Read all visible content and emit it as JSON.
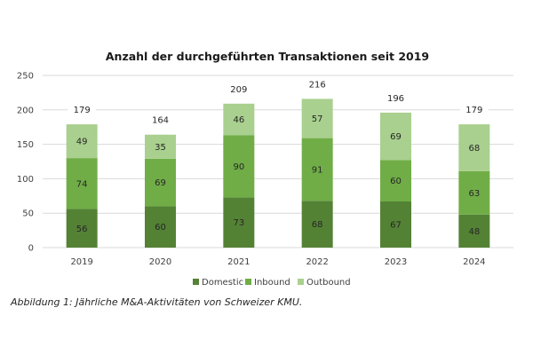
{
  "chart_data": {
    "type": "bar",
    "stacked": true,
    "title": "Anzahl der durchgeführten Transaktionen seit 2019",
    "xlabel": "",
    "ylabel": "",
    "categories": [
      "2019",
      "2020",
      "2021",
      "2022",
      "2023",
      "2024"
    ],
    "series": [
      {
        "name": "Domestic",
        "color": "#548235",
        "values": [
          56,
          60,
          73,
          68,
          67,
          48
        ]
      },
      {
        "name": "Inbound",
        "color": "#70AD47",
        "values": [
          74,
          69,
          90,
          91,
          60,
          63
        ]
      },
      {
        "name": "Outbound",
        "color": "#A9D08E",
        "values": [
          49,
          35,
          46,
          57,
          69,
          68
        ]
      }
    ],
    "totals": [
      179,
      164,
      209,
      216,
      196,
      179
    ],
    "ylim": [
      0,
      250
    ],
    "yticks": [
      0,
      50,
      100,
      150,
      200,
      250
    ],
    "grid": true,
    "legend_position": "bottom"
  },
  "caption": "Abbildung 1: Jährliche M&A-Aktivitäten von Schweizer KMU."
}
